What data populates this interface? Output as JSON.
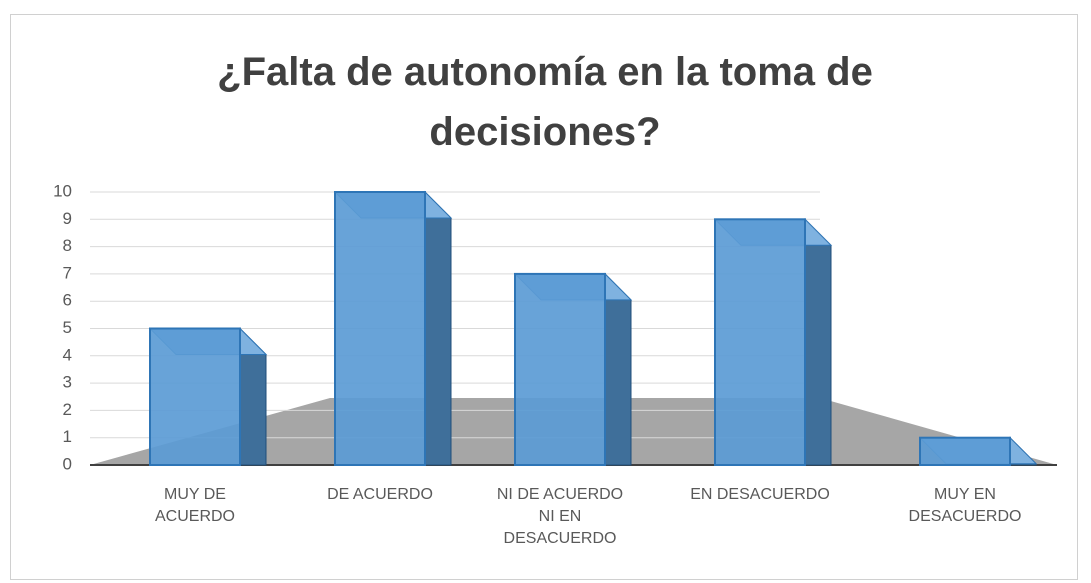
{
  "chart_data": {
    "type": "bar",
    "title": "¿Falta de autonomía en la toma de decisiones?",
    "categories": [
      "MUY DE\nACUERDO",
      "DE ACUERDO",
      "NI DE ACUERDO\nNI EN\nDESACUERDO",
      "EN DESACUERDO",
      "MUY EN\nDESACUERDO"
    ],
    "values": [
      5,
      10,
      7,
      9,
      1
    ],
    "color": "#5b9bd5",
    "ylim": [
      0,
      10
    ],
    "yticks": [
      0,
      1,
      2,
      3,
      4,
      5,
      6,
      7,
      8,
      9,
      10
    ],
    "grid": true
  }
}
